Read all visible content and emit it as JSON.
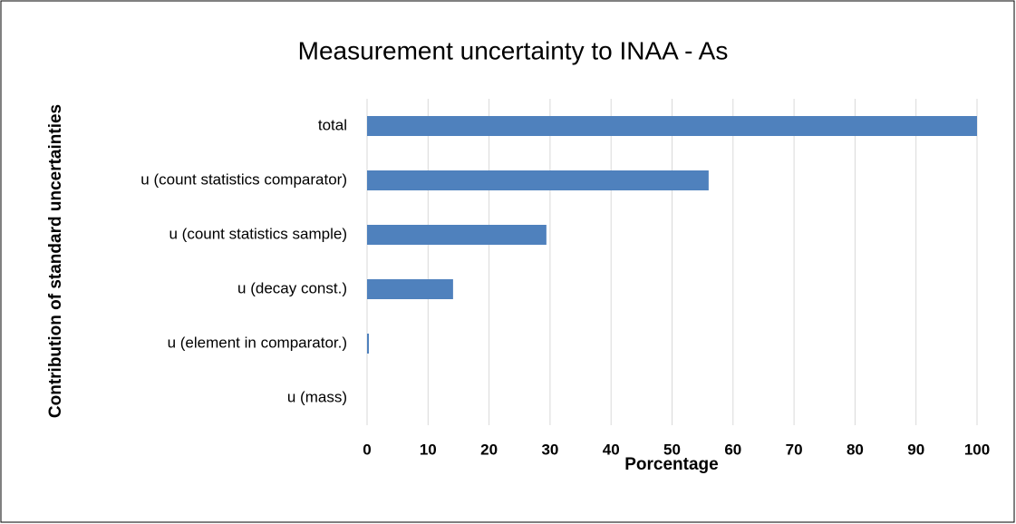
{
  "chart_data": {
    "type": "bar",
    "orientation": "horizontal",
    "title": "Measurement uncertainty to INAA - As",
    "x_label": "Porcentage",
    "y_label": "Contribution of standard uncertainties",
    "categories": [
      "total",
      "u (count statistics comparator)",
      "u (count statistics sample)",
      "u (decay const.)",
      "u (element in comparator.)",
      "u (mass)"
    ],
    "values": [
      100,
      56,
      29.4,
      14.1,
      0.3,
      0
    ],
    "color": "#4f81bd",
    "xlim": [
      0,
      100
    ],
    "xticks": [
      0,
      10,
      20,
      30,
      40,
      50,
      60,
      70,
      80,
      90,
      100
    ],
    "grid": true
  }
}
